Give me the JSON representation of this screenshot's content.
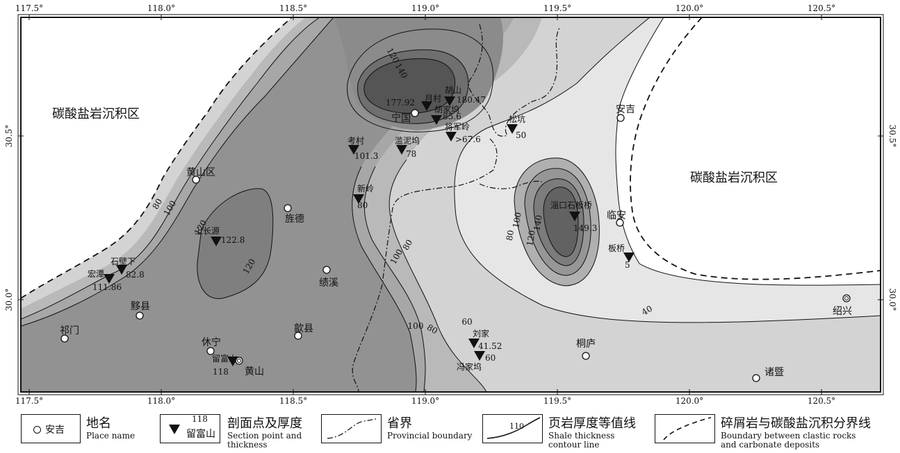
{
  "map": {
    "x_ticks": [
      "117.5°",
      "118.0°",
      "118.5°",
      "119.0°",
      "119.5°",
      "120.0°",
      "120.5°"
    ],
    "y_ticks_left": [
      "30.5°",
      "30.0°"
    ],
    "y_ticks_right": [
      "30.5°",
      "30.0°"
    ],
    "region_labels": [
      "碳酸盐岩沉积区",
      "碳酸盐岩沉积区"
    ],
    "places": [
      {
        "name": "安吉"
      },
      {
        "name": "宁国"
      },
      {
        "name": "黄山区"
      },
      {
        "name": "旌德"
      },
      {
        "name": "绩溪"
      },
      {
        "name": "黟县"
      },
      {
        "name": "祁门"
      },
      {
        "name": "休宁"
      },
      {
        "name": "歙县"
      },
      {
        "name": "临安"
      },
      {
        "name": "桐庐"
      },
      {
        "name": "诸暨"
      },
      {
        "name": "绍兴"
      },
      {
        "name": "黄山"
      }
    ],
    "sections": [
      {
        "name": "月村",
        "value": "177.92"
      },
      {
        "name": "胡山",
        "value": "180.47"
      },
      {
        "name": "胡家坞",
        "value": "85.6"
      },
      {
        "name": "将军岭",
        "value": ">67.6"
      },
      {
        "name": "松坑",
        "value": "50"
      },
      {
        "name": "考村",
        "value": "101.3"
      },
      {
        "name": "滥泥坞",
        "value": "78"
      },
      {
        "name": "新岭",
        "value": "80"
      },
      {
        "name": "上长源",
        "value": "122.8"
      },
      {
        "name": "石壁下",
        "value": "82.8"
      },
      {
        "name": "宏潭",
        "value": "111.86"
      },
      {
        "name": "淄口石板桥",
        "value": "149.3"
      },
      {
        "name": "板桥",
        "value": "5"
      },
      {
        "name": "刘家",
        "value": "41.52"
      },
      {
        "name": "冯家坞",
        "value": "60"
      },
      {
        "name": "留富山",
        "value": "118"
      }
    ],
    "contour_labels": [
      "120",
      "140",
      "80",
      "100",
      "120",
      "120",
      "100",
      "80",
      "100",
      "80",
      "60",
      "100",
      "140",
      "80",
      "120",
      "40"
    ],
    "colors": {
      "shade1": "#d9d9d9",
      "shade2": "#bdbdbd",
      "shade3": "#a3a3a3",
      "shade4": "#8a8a8a",
      "shade5": "#6e6e6e",
      "carbonate": "#ffffff",
      "frame": "#111111"
    }
  },
  "legend": {
    "place": {
      "sample": "安吉",
      "zh": "地名",
      "en": "Place name"
    },
    "section": {
      "value": "118",
      "name": "留富山",
      "zh": "剖面点及厚度",
      "en1": "Section point and",
      "en2": "thickness"
    },
    "province": {
      "zh": "省界",
      "en": "Provincial boundary"
    },
    "contour": {
      "value": "110",
      "zh": "页岩厚度等值线",
      "en1": "Shale thickness",
      "en2": "contour line"
    },
    "boundary": {
      "zh": "碎屑岩与碳酸盐沉积分界线",
      "en1": "Boundary between clastic rocks",
      "en2": "and carbonate deposits"
    }
  }
}
